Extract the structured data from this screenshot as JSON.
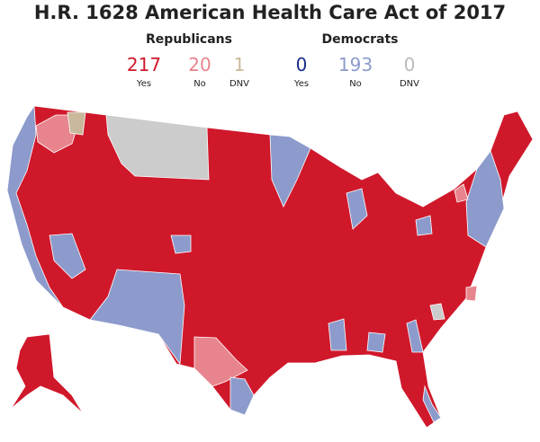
{
  "header": {
    "title": "H.R. 1628 American Health Care Act of 2017"
  },
  "parties": [
    {
      "name": "Republicans",
      "counts": [
        {
          "value": 217,
          "label": "Yes"
        },
        {
          "value": 20,
          "label": "No"
        },
        {
          "value": 1,
          "label": "DNV"
        }
      ]
    },
    {
      "name": "Democrats",
      "counts": [
        {
          "value": 0,
          "label": "Yes"
        },
        {
          "value": 193,
          "label": "No"
        },
        {
          "value": 0,
          "label": "DNV"
        }
      ]
    }
  ]
}
